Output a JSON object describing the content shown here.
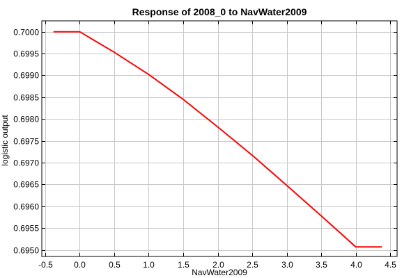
{
  "chart_data": {
    "type": "line",
    "title": "Response of 2008_0 to NavWater2009",
    "xlabel": "NavWater2009",
    "ylabel": "logistic output",
    "xlim": [
      -0.55,
      4.6
    ],
    "ylim": [
      0.69485,
      0.70025
    ],
    "xticks": [
      -0.5,
      0.0,
      0.5,
      1.0,
      1.5,
      2.0,
      2.5,
      3.0,
      3.5,
      4.0,
      4.5
    ],
    "xtick_labels": [
      "-0.5",
      "0.0",
      "0.5",
      "1.0",
      "1.5",
      "2.0",
      "2.5",
      "3.0",
      "3.5",
      "4.0",
      "4.5"
    ],
    "yticks": [
      0.695,
      0.6955,
      0.696,
      0.6965,
      0.697,
      0.6975,
      0.698,
      0.6985,
      0.699,
      0.6995,
      0.7
    ],
    "ytick_labels": [
      "0.6950",
      "0.6955",
      "0.6960",
      "0.6965",
      "0.6970",
      "0.6975",
      "0.6980",
      "0.6985",
      "0.6990",
      "0.6995",
      "0.7000"
    ],
    "grid": true,
    "series": [
      {
        "color": "#ff0000",
        "x": [
          -0.38,
          0.0,
          0.5,
          1.0,
          1.5,
          2.0,
          2.5,
          3.0,
          3.5,
          4.0,
          4.38
        ],
        "y": [
          0.7,
          0.7,
          0.69953,
          0.69902,
          0.69845,
          0.69782,
          0.69717,
          0.69648,
          0.69578,
          0.69507,
          0.69507
        ]
      }
    ]
  }
}
